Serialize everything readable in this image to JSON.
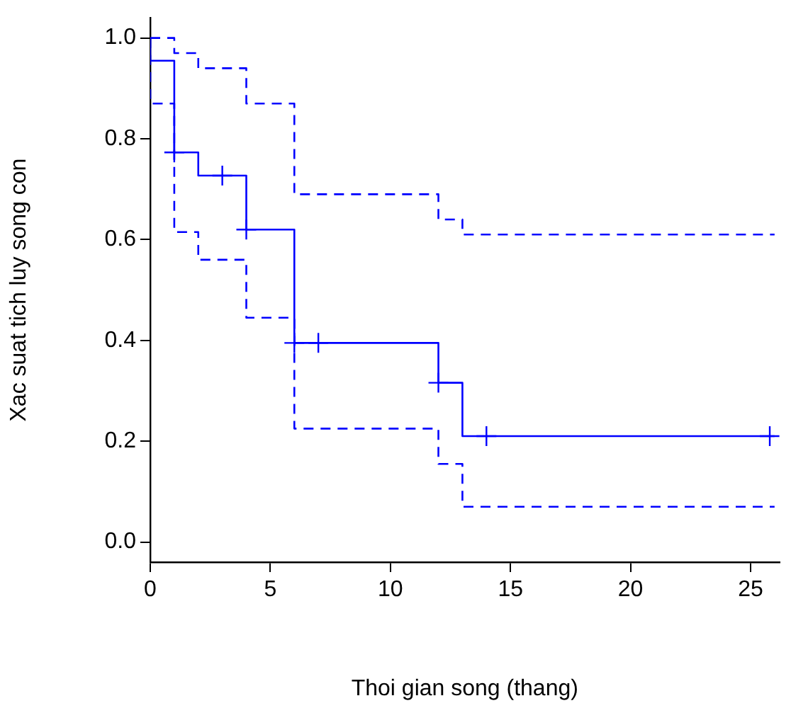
{
  "chart_data": {
    "type": "step",
    "xlabel": "Thoi gian song (thang)",
    "ylabel": "Xac suat tich luy song con",
    "xlim": [
      0,
      26.2
    ],
    "ylim": [
      -0.04,
      1.04
    ],
    "xticks": [
      0,
      5,
      10,
      15,
      20,
      25
    ],
    "yticks": [
      {
        "value": 0,
        "label": "0.0"
      },
      {
        "value": 0.2,
        "label": "0.2"
      },
      {
        "value": 0.4,
        "label": "0.4"
      },
      {
        "value": 0.6,
        "label": "0.6"
      },
      {
        "value": 0.8,
        "label": "0.8"
      },
      {
        "value": 1,
        "label": "1.0"
      }
    ],
    "grid": false,
    "legend": false,
    "series": [
      {
        "color": "#0000ff",
        "line_style": "solid",
        "marker": "none",
        "x": [
          0,
          0,
          1,
          2,
          4,
          6,
          12,
          13,
          26
        ],
        "values": [
          1,
          0.955,
          0.773,
          0.727,
          0.62,
          0.395,
          0.316,
          0.21,
          0.21
        ]
      },
      {
        "color": "#0000ff",
        "line_style": "dashed",
        "marker": "none",
        "x": [
          0,
          1,
          2,
          4,
          6,
          12,
          13,
          26
        ],
        "values": [
          1,
          0.97,
          0.94,
          0.87,
          0.69,
          0.64,
          0.61,
          0.61
        ]
      },
      {
        "color": "#0000ff",
        "line_style": "dashed",
        "marker": "none",
        "x": [
          0,
          0,
          1,
          2,
          4,
          6,
          12,
          13,
          26
        ],
        "values": [
          1,
          0.87,
          0.615,
          0.56,
          0.445,
          0.225,
          0.155,
          0.07,
          0.07
        ]
      },
      {
        "type": "scatter",
        "color": "#0000ff",
        "marker": "cross",
        "x": [
          1,
          3,
          4,
          6,
          7,
          12,
          14,
          25.8
        ],
        "values": [
          0.773,
          0.727,
          0.62,
          0.395,
          0.395,
          0.316,
          0.21,
          0.21
        ]
      }
    ]
  }
}
